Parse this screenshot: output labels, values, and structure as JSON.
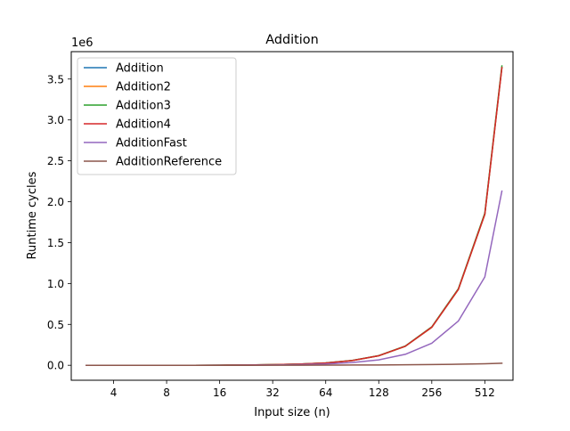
{
  "chart_data": {
    "type": "line",
    "title": "Addition",
    "xlabel": "Input size (n)",
    "ylabel": "Runtime cycles",
    "y_multiplier_label": "1e6",
    "x_scale": "log2",
    "xlim": [
      2.3,
      740
    ],
    "ylim": [
      -0.183,
      3.835
    ],
    "x_ticks": [
      4,
      8,
      16,
      32,
      64,
      128,
      256,
      512
    ],
    "x_tick_labels": [
      "4",
      "8",
      "16",
      "32",
      "64",
      "128",
      "256",
      "512"
    ],
    "y_ticks": [
      0.0,
      0.5,
      1.0,
      1.5,
      2.0,
      2.5,
      3.0,
      3.5
    ],
    "y_tick_labels": [
      "0.0",
      "0.5",
      "1.0",
      "1.5",
      "2.0",
      "2.5",
      "3.0",
      "3.5"
    ],
    "grid": false,
    "legend_position": "top-left",
    "x": [
      2.8,
      4,
      5.6,
      8,
      11.3,
      16,
      22.6,
      32,
      45.3,
      64,
      90.5,
      128,
      181,
      256,
      362,
      512,
      640
    ],
    "series": [
      {
        "name": "Addition",
        "color": "#1f77b4",
        "values": [
          0.0,
          0.0,
          0.0,
          0.0,
          0.0,
          0.001,
          0.003,
          0.007,
          0.014,
          0.028,
          0.058,
          0.116,
          0.232,
          0.464,
          0.925,
          1.845,
          3.64
        ]
      },
      {
        "name": "Addition2",
        "color": "#ff7f0e",
        "values": [
          0.0,
          0.0,
          0.0,
          0.0,
          0.0,
          0.001,
          0.003,
          0.007,
          0.014,
          0.028,
          0.058,
          0.116,
          0.232,
          0.464,
          0.925,
          1.845,
          3.64
        ]
      },
      {
        "name": "Addition3",
        "color": "#2ca02c",
        "values": [
          0.0,
          0.0,
          0.0,
          0.0,
          0.0,
          0.001,
          0.003,
          0.007,
          0.014,
          0.029,
          0.059,
          0.118,
          0.235,
          0.47,
          0.935,
          1.86,
          3.66
        ]
      },
      {
        "name": "Addition4",
        "color": "#d62728",
        "values": [
          0.0,
          0.0,
          0.0,
          0.0,
          0.0,
          0.001,
          0.003,
          0.007,
          0.014,
          0.028,
          0.058,
          0.117,
          0.233,
          0.466,
          0.928,
          1.848,
          3.64
        ]
      },
      {
        "name": "AdditionFast",
        "color": "#9467bd",
        "values": [
          0.0,
          0.0,
          0.0,
          0.0,
          0.0,
          0.001,
          0.002,
          0.004,
          0.008,
          0.016,
          0.033,
          0.066,
          0.134,
          0.27,
          0.54,
          1.08,
          2.13
        ]
      },
      {
        "name": "AdditionReference",
        "color": "#8c564b",
        "values": [
          0.0,
          0.0,
          0.0,
          0.0,
          0.0,
          0.0,
          0.0,
          0.001,
          0.001,
          0.002,
          0.003,
          0.004,
          0.006,
          0.009,
          0.013,
          0.019,
          0.025
        ]
      }
    ]
  }
}
